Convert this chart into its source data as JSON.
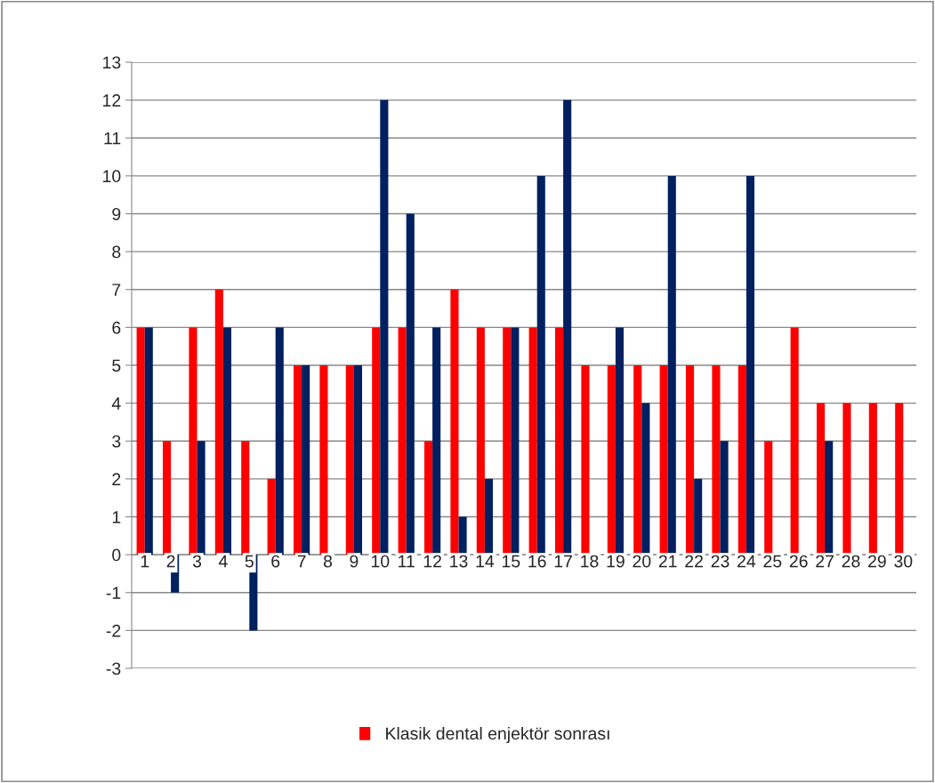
{
  "chart_data": {
    "type": "bar",
    "categories": [
      "1",
      "2",
      "3",
      "4",
      "5",
      "6",
      "7",
      "8",
      "9",
      "10",
      "11",
      "12",
      "13",
      "14",
      "15",
      "16",
      "17",
      "18",
      "19",
      "20",
      "21",
      "22",
      "23",
      "24",
      "25",
      "26",
      "27",
      "28",
      "29",
      "30"
    ],
    "series": [
      {
        "name": "Klasik dental enjektör sonrası",
        "color": "#ff0000",
        "values": [
          6,
          3,
          6,
          7,
          3,
          2,
          5,
          5,
          5,
          6,
          6,
          3,
          7,
          6,
          6,
          6,
          6,
          5,
          5,
          5,
          5,
          5,
          5,
          5,
          3,
          6,
          4,
          4,
          4,
          4
        ]
      },
      {
        "color": "#002060",
        "values": [
          6,
          -1,
          3,
          6,
          -2,
          6,
          5,
          null,
          5,
          12,
          9,
          6,
          1,
          2,
          6,
          10,
          12,
          null,
          6,
          4,
          10,
          2,
          3,
          10,
          null,
          null,
          3,
          null,
          null,
          null
        ]
      }
    ],
    "ylim": [
      -3,
      13
    ],
    "yticks": [
      -3,
      -2,
      -1,
      0,
      1,
      2,
      3,
      4,
      5,
      6,
      7,
      8,
      9,
      10,
      11,
      12,
      13
    ],
    "grid": "y",
    "legend": "bottom"
  }
}
